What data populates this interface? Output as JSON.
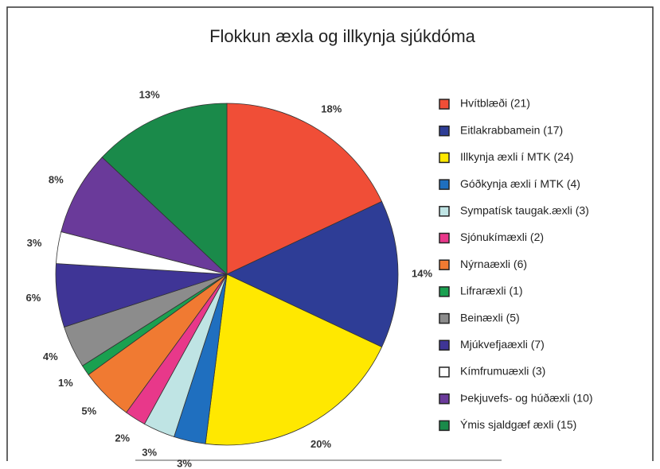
{
  "chart_data": {
    "type": "pie",
    "title": "Flokkun æxla og illkynja sjúkdóma",
    "categories": [
      "Hvítblæði (21)",
      "Eitlakrabbamein (17)",
      "Illkynja æxli í MTK (24)",
      "Góðkynja æxli í MTK (4)",
      "Sympatísk taugak.æxli (3)",
      "Sjónukímæxli (2)",
      "Nýrnaæxli (6)",
      "Lifraræxli (1)",
      "Beinæxli (5)",
      "Mjúkvefjaæxli (7)",
      "Kímfrumuæxli (3)",
      "Þekjuvefs- og húðæxli (10)",
      "Ýmis sjaldgæf æxli (15)"
    ],
    "values": [
      18,
      14,
      20,
      3,
      3,
      2,
      5,
      1,
      4,
      6,
      3,
      8,
      13
    ],
    "value_labels": [
      "18%",
      "14%",
      "20%",
      "3%",
      "3%",
      "2%",
      "5%",
      "1%",
      "4%",
      "6%",
      "3%",
      "8%",
      "13%"
    ],
    "colors": [
      "#f04e37",
      "#2e3d96",
      "#ffe800",
      "#1f6fbf",
      "#bfe4e4",
      "#e8388a",
      "#f07a32",
      "#1aa050",
      "#8c8c8c",
      "#3f3596",
      "#ffffff",
      "#6a3a9a",
      "#1a8a4a"
    ],
    "legend": "right"
  }
}
